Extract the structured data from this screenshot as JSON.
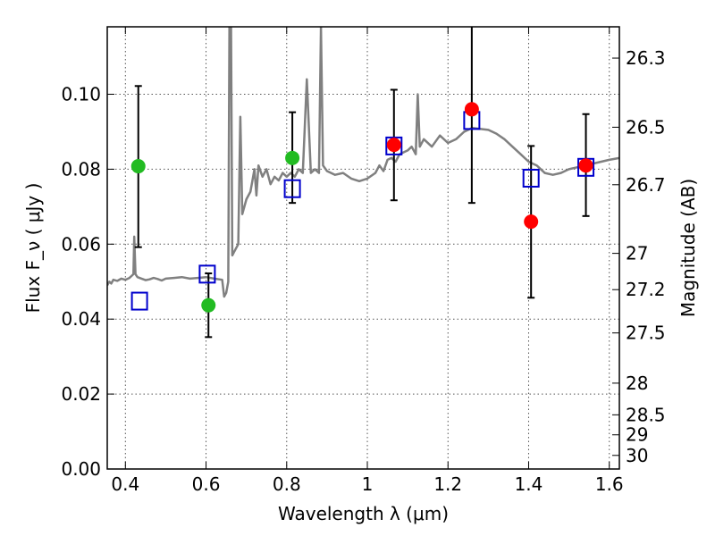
{
  "chart_data": {
    "type": "scatter",
    "xlabel": "Wavelength λ (μm)",
    "ylabel": "Flux F_ν ( μJy )",
    "y2label": "Magnitude (AB)",
    "xlim": [
      0.355,
      1.625
    ],
    "ylim": [
      0.0,
      0.118
    ],
    "x_ticks": [
      0.4,
      0.6,
      0.8,
      1.0,
      1.2,
      1.4,
      1.6
    ],
    "x_tick_labels": [
      "0.4",
      "0.6",
      "0.8",
      "1",
      "1.2",
      "1.4",
      "1.6"
    ],
    "y_ticks": [
      0.0,
      0.02,
      0.04,
      0.06,
      0.08,
      0.1
    ],
    "y_tick_labels": [
      "0.00",
      "0.02",
      "0.04",
      "0.06",
      "0.08",
      "0.10"
    ],
    "y2_ticks": [
      26.3,
      26.5,
      26.7,
      27,
      27.2,
      27.5,
      28,
      28.5,
      29,
      30
    ],
    "y2_tick_labels": [
      "26.3",
      "26.5",
      "26.7",
      "27",
      "27.2",
      "27.5",
      "28",
      "28.5",
      "29",
      "30"
    ],
    "grid": true,
    "colors": {
      "spectrum": "#808080",
      "green_points": "#22bb22",
      "red_points": "#ff0000",
      "model_points": "#0000cc",
      "errorbars": "#000000"
    },
    "spectrum": [
      [
        0.355,
        0.049
      ],
      [
        0.36,
        0.05
      ],
      [
        0.365,
        0.0495
      ],
      [
        0.37,
        0.0505
      ],
      [
        0.38,
        0.0502
      ],
      [
        0.39,
        0.0508
      ],
      [
        0.4,
        0.0505
      ],
      [
        0.41,
        0.051
      ],
      [
        0.415,
        0.0515
      ],
      [
        0.42,
        0.052
      ],
      [
        0.422,
        0.062
      ],
      [
        0.425,
        0.052
      ],
      [
        0.43,
        0.0512
      ],
      [
        0.44,
        0.0508
      ],
      [
        0.45,
        0.0504
      ],
      [
        0.46,
        0.0506
      ],
      [
        0.47,
        0.051
      ],
      [
        0.48,
        0.0507
      ],
      [
        0.49,
        0.0503
      ],
      [
        0.5,
        0.0508
      ],
      [
        0.52,
        0.051
      ],
      [
        0.54,
        0.0512
      ],
      [
        0.56,
        0.0508
      ],
      [
        0.58,
        0.051
      ],
      [
        0.6,
        0.0512
      ],
      [
        0.62,
        0.0508
      ],
      [
        0.64,
        0.0505
      ],
      [
        0.645,
        0.046
      ],
      [
        0.65,
        0.047
      ],
      [
        0.655,
        0.05
      ],
      [
        0.658,
        0.118
      ],
      [
        0.662,
        0.118
      ],
      [
        0.665,
        0.057
      ],
      [
        0.67,
        0.058
      ],
      [
        0.68,
        0.06
      ],
      [
        0.685,
        0.094
      ],
      [
        0.69,
        0.068
      ],
      [
        0.7,
        0.072
      ],
      [
        0.71,
        0.074
      ],
      [
        0.72,
        0.08
      ],
      [
        0.725,
        0.073
      ],
      [
        0.73,
        0.081
      ],
      [
        0.74,
        0.078
      ],
      [
        0.75,
        0.08
      ],
      [
        0.76,
        0.076
      ],
      [
        0.77,
        0.078
      ],
      [
        0.78,
        0.077
      ],
      [
        0.79,
        0.079
      ],
      [
        0.8,
        0.078
      ],
      [
        0.81,
        0.079
      ],
      [
        0.82,
        0.078
      ],
      [
        0.83,
        0.08
      ],
      [
        0.84,
        0.079
      ],
      [
        0.85,
        0.104
      ],
      [
        0.86,
        0.079
      ],
      [
        0.87,
        0.08
      ],
      [
        0.88,
        0.079
      ],
      [
        0.885,
        0.118
      ],
      [
        0.89,
        0.081
      ],
      [
        0.9,
        0.0795
      ],
      [
        0.92,
        0.0785
      ],
      [
        0.94,
        0.079
      ],
      [
        0.96,
        0.0775
      ],
      [
        0.98,
        0.0768
      ],
      [
        1.0,
        0.0775
      ],
      [
        1.02,
        0.079
      ],
      [
        1.03,
        0.081
      ],
      [
        1.04,
        0.0795
      ],
      [
        1.05,
        0.0825
      ],
      [
        1.06,
        0.083
      ],
      [
        1.07,
        0.082
      ],
      [
        1.08,
        0.084
      ],
      [
        1.1,
        0.085
      ],
      [
        1.11,
        0.086
      ],
      [
        1.12,
        0.084
      ],
      [
        1.125,
        0.1
      ],
      [
        1.13,
        0.086
      ],
      [
        1.14,
        0.088
      ],
      [
        1.16,
        0.086
      ],
      [
        1.18,
        0.089
      ],
      [
        1.2,
        0.087
      ],
      [
        1.22,
        0.088
      ],
      [
        1.24,
        0.09
      ],
      [
        1.26,
        0.091
      ],
      [
        1.3,
        0.0905
      ],
      [
        1.32,
        0.0895
      ],
      [
        1.34,
        0.088
      ],
      [
        1.36,
        0.086
      ],
      [
        1.38,
        0.084
      ],
      [
        1.4,
        0.082
      ],
      [
        1.42,
        0.081
      ],
      [
        1.44,
        0.079
      ],
      [
        1.46,
        0.0785
      ],
      [
        1.48,
        0.079
      ],
      [
        1.5,
        0.08
      ],
      [
        1.52,
        0.0805
      ],
      [
        1.54,
        0.081
      ],
      [
        1.56,
        0.0815
      ],
      [
        1.58,
        0.082
      ],
      [
        1.6,
        0.0825
      ],
      [
        1.625,
        0.083
      ]
    ],
    "green_points": [
      {
        "x": 0.432,
        "y": 0.0808,
        "ylo": 0.0592,
        "yhi": 0.1022
      },
      {
        "x": 0.606,
        "y": 0.0437,
        "ylo": 0.0352,
        "yhi": 0.0522
      },
      {
        "x": 0.814,
        "y": 0.083,
        "ylo": 0.071,
        "yhi": 0.0952
      }
    ],
    "red_points": [
      {
        "x": 1.066,
        "y": 0.0865,
        "ylo": 0.0717,
        "yhi": 0.1012
      },
      {
        "x": 1.259,
        "y": 0.096,
        "ylo": 0.071,
        "yhi": 0.121
      },
      {
        "x": 1.406,
        "y": 0.066,
        "ylo": 0.0457,
        "yhi": 0.0862
      },
      {
        "x": 1.542,
        "y": 0.081,
        "ylo": 0.0675,
        "yhi": 0.0947
      }
    ],
    "model_points": [
      {
        "x": 0.435,
        "y": 0.0448
      },
      {
        "x": 0.603,
        "y": 0.052
      },
      {
        "x": 0.814,
        "y": 0.0748
      },
      {
        "x": 1.066,
        "y": 0.0862
      },
      {
        "x": 1.259,
        "y": 0.093
      },
      {
        "x": 1.406,
        "y": 0.0776
      },
      {
        "x": 1.542,
        "y": 0.0805
      }
    ]
  }
}
